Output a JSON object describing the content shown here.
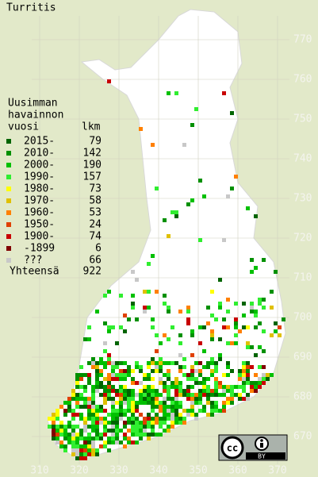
{
  "title": "Turritis",
  "legend": {
    "header": [
      "Uusimman",
      "havainnon",
      "vuosi"
    ],
    "count_header": "lkm",
    "rows": [
      {
        "label": "2015-",
        "count": 79,
        "color": "#006400"
      },
      {
        "label": "2010-",
        "count": 142,
        "color": "#009000"
      },
      {
        "label": "2000-",
        "count": 190,
        "color": "#00c000"
      },
      {
        "label": "1990-",
        "count": 157,
        "color": "#30ee30"
      },
      {
        "label": "1980-",
        "count": 73,
        "color": "#ffff00"
      },
      {
        "label": "1970-",
        "count": 58,
        "color": "#e0c000"
      },
      {
        "label": "1960-",
        "count": 53,
        "color": "#ff8000"
      },
      {
        "label": "1950-",
        "count": 24,
        "color": "#e04000"
      },
      {
        "label": "1900-",
        "count": 74,
        "color": "#c80000"
      },
      {
        "label": "-1899",
        "count": 6,
        "color": "#800000"
      },
      {
        "label": "???",
        "count": 66,
        "color": "#c8c8c8"
      }
    ],
    "total_label": "Yhteensä",
    "total": 922
  },
  "axes": {
    "y_labels": [
      670,
      680,
      690,
      700,
      710,
      720,
      730,
      740,
      750,
      760,
      770
    ],
    "x_labels": [
      310,
      320,
      330,
      340,
      350,
      360,
      370
    ]
  },
  "license": {
    "mark": "cc",
    "by": "BY"
  }
}
